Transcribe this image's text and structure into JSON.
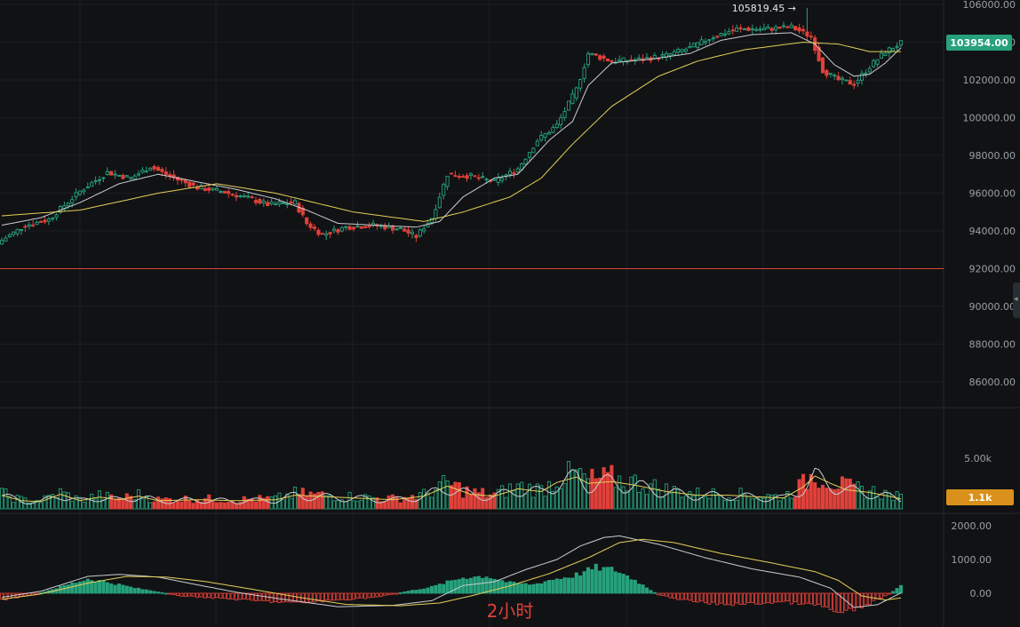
{
  "chart_data": {
    "type": "candlestick",
    "timeframe_label": "2小时",
    "colors": {
      "up": "#26a17b",
      "down": "#e0413a",
      "ma_fast": "#c9ccd1",
      "ma_slow": "#e3d05a",
      "bg": "#111214",
      "grid": "#1c1e22",
      "level": "#e0413a",
      "price_tag": "#26a17b",
      "volume_tag": "#d9911b"
    },
    "price_axis": {
      "ticks": [
        "106000.00",
        "104000.00",
        "102000.00",
        "100000.00",
        "98000.00",
        "96000.00",
        "94000.00",
        "92000.00",
        "90000.00",
        "88000.00",
        "86000.00"
      ],
      "range": [
        84800,
        106300
      ]
    },
    "volume_axis": {
      "ticks": [
        "5.00k"
      ],
      "range": [
        0,
        7500
      ]
    },
    "macd_axis": {
      "ticks": [
        "2000.00",
        "1000.00",
        "0.00"
      ],
      "range": [
        -800,
        2400
      ]
    },
    "current_price": "103954.00",
    "current_volume": "1.1k",
    "high_label": "105819.45 →",
    "horizontal_level": 92000,
    "anchors": {
      "close": [
        [
          0,
          93500
        ],
        [
          6,
          94300
        ],
        [
          12,
          94600
        ],
        [
          20,
          96100
        ],
        [
          27,
          97100
        ],
        [
          33,
          96800
        ],
        [
          38,
          97400
        ],
        [
          44,
          96800
        ],
        [
          50,
          96300
        ],
        [
          56,
          96100
        ],
        [
          62,
          95800
        ],
        [
          68,
          95400
        ],
        [
          75,
          95500
        ],
        [
          78,
          94400
        ],
        [
          82,
          93800
        ],
        [
          88,
          94200
        ],
        [
          95,
          94300
        ],
        [
          102,
          94100
        ],
        [
          106,
          93700
        ],
        [
          110,
          94700
        ],
        [
          114,
          97000
        ],
        [
          120,
          96900
        ],
        [
          126,
          96600
        ],
        [
          132,
          97300
        ],
        [
          137,
          98800
        ],
        [
          142,
          99600
        ],
        [
          147,
          101500
        ],
        [
          150,
          103400
        ],
        [
          156,
          103000
        ],
        [
          164,
          103100
        ],
        [
          170,
          103300
        ],
        [
          176,
          103700
        ],
        [
          182,
          104300
        ],
        [
          188,
          104700
        ],
        [
          195,
          104700
        ],
        [
          202,
          104800
        ],
        [
          207,
          104300
        ],
        [
          210,
          102500
        ],
        [
          214,
          102000
        ],
        [
          218,
          101800
        ],
        [
          222,
          102700
        ],
        [
          226,
          103500
        ],
        [
          230,
          103954
        ]
      ],
      "ma_fast": [
        [
          0,
          94300
        ],
        [
          10,
          94700
        ],
        [
          20,
          95500
        ],
        [
          30,
          96500
        ],
        [
          40,
          97000
        ],
        [
          50,
          96600
        ],
        [
          60,
          96200
        ],
        [
          70,
          95700
        ],
        [
          78,
          95100
        ],
        [
          86,
          94400
        ],
        [
          96,
          94300
        ],
        [
          106,
          94200
        ],
        [
          112,
          94500
        ],
        [
          118,
          95800
        ],
        [
          126,
          96800
        ],
        [
          132,
          97000
        ],
        [
          140,
          98800
        ],
        [
          146,
          99800
        ],
        [
          150,
          101700
        ],
        [
          156,
          102900
        ],
        [
          166,
          103100
        ],
        [
          176,
          103400
        ],
        [
          184,
          104100
        ],
        [
          192,
          104400
        ],
        [
          202,
          104500
        ],
        [
          208,
          103900
        ],
        [
          213,
          102800
        ],
        [
          218,
          102200
        ],
        [
          222,
          102300
        ],
        [
          226,
          102900
        ],
        [
          230,
          103700
        ]
      ],
      "ma_slow": [
        [
          0,
          94800
        ],
        [
          20,
          95100
        ],
        [
          40,
          96000
        ],
        [
          55,
          96500
        ],
        [
          70,
          96000
        ],
        [
          90,
          95000
        ],
        [
          108,
          94500
        ],
        [
          118,
          95000
        ],
        [
          130,
          95800
        ],
        [
          138,
          96800
        ],
        [
          146,
          98600
        ],
        [
          156,
          100600
        ],
        [
          168,
          102200
        ],
        [
          178,
          103000
        ],
        [
          190,
          103600
        ],
        [
          205,
          104000
        ],
        [
          214,
          103900
        ],
        [
          222,
          103500
        ],
        [
          230,
          103500
        ]
      ],
      "volume": [
        [
          0,
          1500
        ],
        [
          5,
          900
        ],
        [
          10,
          800
        ],
        [
          15,
          1600
        ],
        [
          20,
          900
        ],
        [
          25,
          1300
        ],
        [
          30,
          1000
        ],
        [
          35,
          1400
        ],
        [
          40,
          900
        ],
        [
          50,
          1000
        ],
        [
          60,
          900
        ],
        [
          70,
          1000
        ],
        [
          75,
          1500
        ],
        [
          80,
          1400
        ],
        [
          90,
          1200
        ],
        [
          100,
          1000
        ],
        [
          108,
          1400
        ],
        [
          114,
          2500
        ],
        [
          120,
          1600
        ],
        [
          126,
          1400
        ],
        [
          132,
          2200
        ],
        [
          138,
          1900
        ],
        [
          142,
          2900
        ],
        [
          147,
          3500
        ],
        [
          150,
          2800
        ],
        [
          156,
          3000
        ],
        [
          162,
          2600
        ],
        [
          170,
          1900
        ],
        [
          178,
          1500
        ],
        [
          186,
          1500
        ],
        [
          194,
          1300
        ],
        [
          200,
          1200
        ],
        [
          205,
          2400
        ],
        [
          208,
          3600
        ],
        [
          212,
          2800
        ],
        [
          216,
          2100
        ],
        [
          222,
          1800
        ],
        [
          228,
          1300
        ],
        [
          230,
          1100
        ]
      ],
      "macd_hist": [
        [
          0,
          -200
        ],
        [
          8,
          -50
        ],
        [
          14,
          150
        ],
        [
          22,
          420
        ],
        [
          28,
          300
        ],
        [
          34,
          150
        ],
        [
          40,
          40
        ],
        [
          46,
          -80
        ],
        [
          56,
          -150
        ],
        [
          66,
          -230
        ],
        [
          76,
          -290
        ],
        [
          86,
          -200
        ],
        [
          96,
          -110
        ],
        [
          104,
          60
        ],
        [
          110,
          180
        ],
        [
          118,
          460
        ],
        [
          124,
          500
        ],
        [
          130,
          300
        ],
        [
          136,
          250
        ],
        [
          140,
          380
        ],
        [
          146,
          500
        ],
        [
          152,
          750
        ],
        [
          157,
          680
        ],
        [
          162,
          380
        ],
        [
          168,
          -50
        ],
        [
          176,
          -230
        ],
        [
          184,
          -330
        ],
        [
          192,
          -310
        ],
        [
          200,
          -250
        ],
        [
          206,
          -330
        ],
        [
          210,
          -380
        ],
        [
          214,
          -600
        ],
        [
          218,
          -500
        ],
        [
          222,
          -300
        ],
        [
          226,
          -80
        ],
        [
          230,
          200
        ]
      ],
      "macd_dif": [
        [
          0,
          -120
        ],
        [
          10,
          60
        ],
        [
          22,
          500
        ],
        [
          30,
          560
        ],
        [
          40,
          480
        ],
        [
          50,
          250
        ],
        [
          60,
          30
        ],
        [
          72,
          -180
        ],
        [
          86,
          -400
        ],
        [
          100,
          -360
        ],
        [
          110,
          -220
        ],
        [
          118,
          230
        ],
        [
          126,
          340
        ],
        [
          134,
          700
        ],
        [
          142,
          1000
        ],
        [
          148,
          1400
        ],
        [
          154,
          1650
        ],
        [
          158,
          1700
        ],
        [
          168,
          1450
        ],
        [
          180,
          1050
        ],
        [
          192,
          720
        ],
        [
          204,
          480
        ],
        [
          212,
          150
        ],
        [
          218,
          -420
        ],
        [
          224,
          -340
        ],
        [
          230,
          10
        ]
      ],
      "macd_dea": [
        [
          0,
          -180
        ],
        [
          10,
          -20
        ],
        [
          22,
          300
        ],
        [
          32,
          500
        ],
        [
          42,
          480
        ],
        [
          52,
          350
        ],
        [
          64,
          120
        ],
        [
          76,
          -120
        ],
        [
          88,
          -330
        ],
        [
          102,
          -370
        ],
        [
          112,
          -290
        ],
        [
          120,
          -80
        ],
        [
          130,
          220
        ],
        [
          140,
          580
        ],
        [
          150,
          1050
        ],
        [
          158,
          1500
        ],
        [
          164,
          1600
        ],
        [
          172,
          1500
        ],
        [
          184,
          1180
        ],
        [
          196,
          920
        ],
        [
          208,
          640
        ],
        [
          214,
          380
        ],
        [
          220,
          -80
        ],
        [
          226,
          -200
        ],
        [
          230,
          -140
        ]
      ]
    }
  }
}
